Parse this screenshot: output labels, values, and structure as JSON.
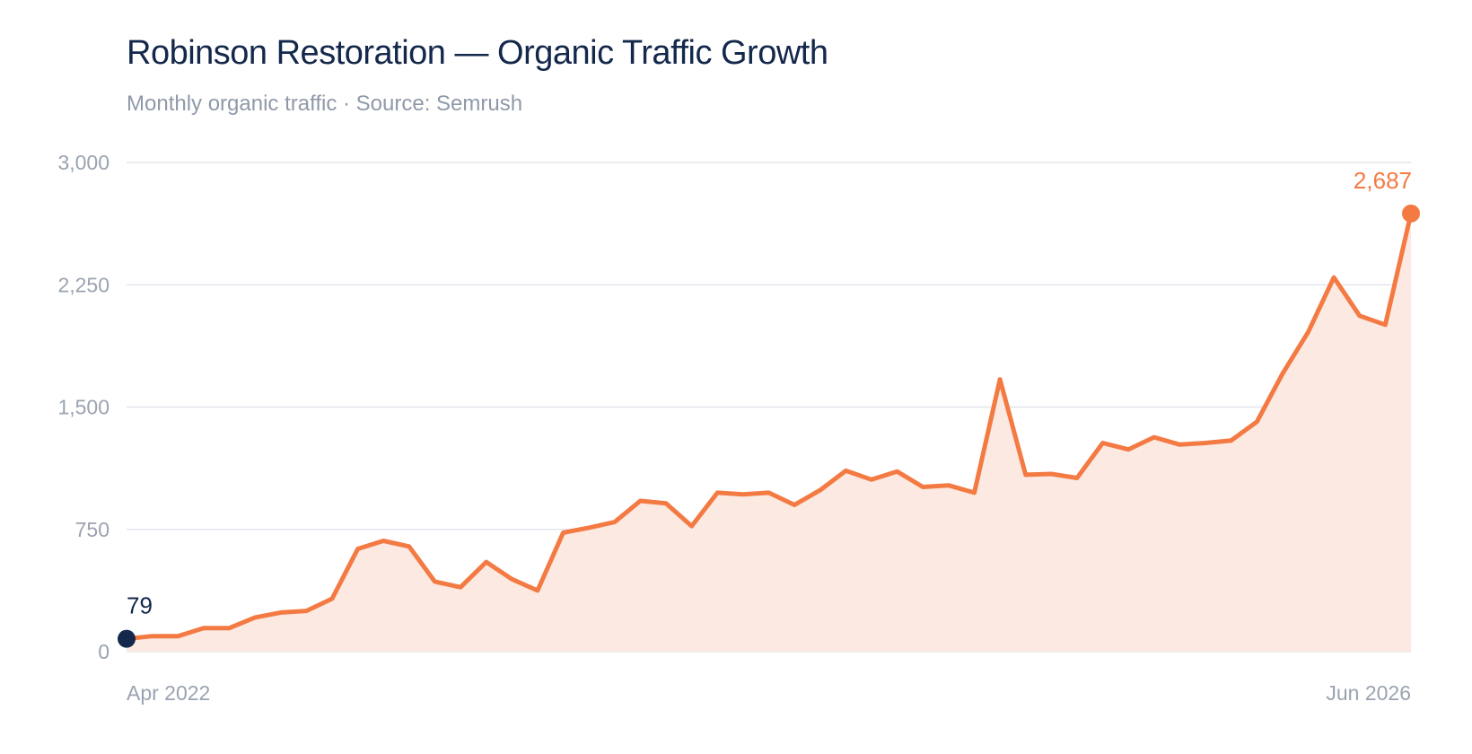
{
  "chart_data": {
    "type": "area",
    "title": "Robinson Restoration — Organic Traffic Growth",
    "subtitle": "Monthly organic traffic · Source: Semrush",
    "xlabel": "",
    "ylabel": "",
    "x_start_label": "Apr 2022",
    "x_end_label": "Jun 2026",
    "ylim": [
      0,
      3000
    ],
    "y_ticks": [
      0,
      750,
      1500,
      2250,
      3000
    ],
    "y_tick_labels": [
      "0",
      "750",
      "1,500",
      "2,250",
      "3,000"
    ],
    "grid": true,
    "first_label": "79",
    "last_label": "2,687",
    "series": [
      {
        "values": [
          79,
          95,
          95,
          145,
          145,
          210,
          240,
          250,
          325,
          630,
          680,
          645,
          430,
          395,
          550,
          445,
          375,
          730,
          760,
          795,
          925,
          910,
          770,
          975,
          965,
          975,
          900,
          990,
          1110,
          1055,
          1105,
          1010,
          1020,
          975,
          1670,
          1085,
          1090,
          1065,
          1280,
          1240,
          1315,
          1270,
          1280,
          1295,
          1410,
          1705,
          1960,
          2295,
          2060,
          2005,
          2687
        ]
      }
    ]
  },
  "colors": {
    "line": "#f47a43",
    "area": "#fce9e1",
    "start_marker": "#14284b",
    "end_marker": "#f47a43",
    "grid": "#e3e6ec",
    "title": "#14284b",
    "muted": "#9aa3b0"
  }
}
